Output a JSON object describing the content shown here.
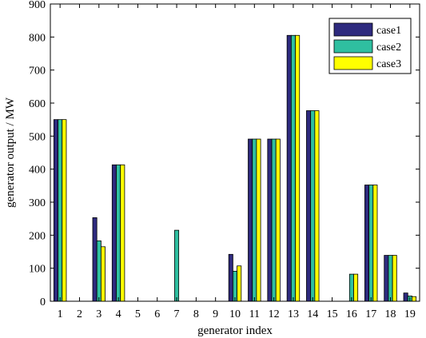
{
  "chart_data": {
    "type": "bar",
    "categories": [
      "1",
      "2",
      "3",
      "4",
      "5",
      "6",
      "7",
      "8",
      "9",
      "10",
      "11",
      "12",
      "13",
      "14",
      "15",
      "16",
      "17",
      "18",
      "19"
    ],
    "series": [
      {
        "name": "case1",
        "color": "#2e2a7e",
        "values": [
          550,
          0,
          253,
          413,
          0,
          0,
          0,
          0,
          0,
          142,
          491,
          491,
          805,
          577,
          0,
          0,
          352,
          139,
          25
        ]
      },
      {
        "name": "case2",
        "color": "#2fbfa0",
        "values": [
          550,
          0,
          183,
          413,
          0,
          0,
          215,
          0,
          0,
          91,
          491,
          491,
          805,
          577,
          0,
          82,
          352,
          139,
          16
        ]
      },
      {
        "name": "case3",
        "color": "#ffff00",
        "values": [
          550,
          0,
          165,
          413,
          0,
          0,
          0,
          0,
          0,
          107,
          491,
          491,
          805,
          577,
          0,
          82,
          352,
          139,
          14
        ]
      }
    ],
    "xlabel": "generator index",
    "ylabel": "generator output / MW",
    "ylim": [
      0,
      900
    ],
    "yticks": [
      "0",
      "100",
      "200",
      "300",
      "400",
      "500",
      "600",
      "700",
      "800",
      "900"
    ],
    "grid": false,
    "legend_position": "top-right"
  }
}
